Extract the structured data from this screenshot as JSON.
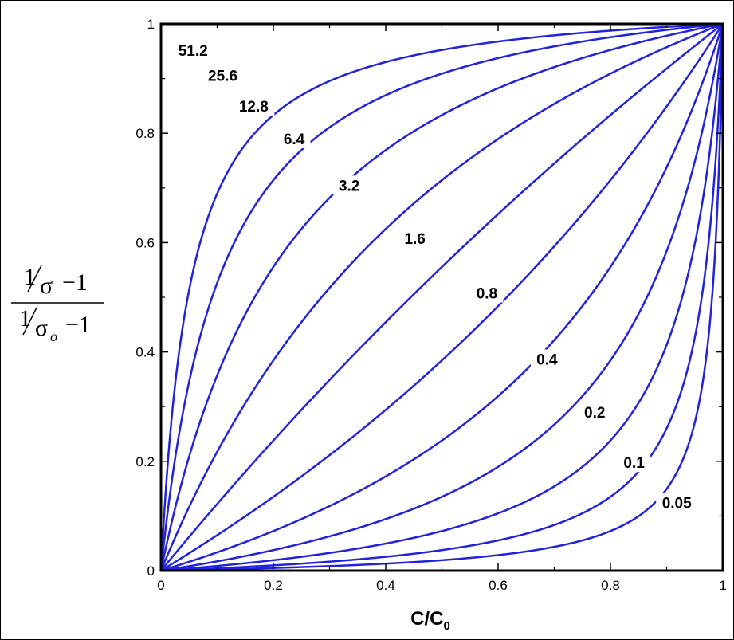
{
  "chart_data": {
    "type": "line",
    "xlabel": "C/C",
    "xlabel_sub": "0",
    "ylabel": {
      "numerator_one": "1",
      "numerator_sym": "σ",
      "numerator_minus_one": "−1",
      "denominator_one": "1",
      "denominator_sym": "σ",
      "denominator_sub": "o",
      "denominator_minus_one": "−1"
    },
    "xlim": [
      0,
      1
    ],
    "ylim": [
      0,
      1
    ],
    "xticks": [
      "0",
      "0.2",
      "0.4",
      "0.6",
      "0.8",
      "1"
    ],
    "yticks": [
      "0",
      "0.2",
      "0.4",
      "0.6",
      "0.8",
      "1"
    ],
    "xtick_values": [
      0,
      0.2,
      0.4,
      0.6,
      0.8,
      1
    ],
    "ytick_values": [
      0,
      0.2,
      0.4,
      0.6,
      0.8,
      1
    ],
    "line_color": "#2222dd",
    "grid": false,
    "series": [
      {
        "name": "51.2",
        "param": 51.2,
        "label_at": [
          0.057,
          0.952
        ]
      },
      {
        "name": "25.6",
        "param": 25.6,
        "label_at": [
          0.11,
          0.906
        ]
      },
      {
        "name": "12.8",
        "param": 12.8,
        "label_at": [
          0.165,
          0.85
        ]
      },
      {
        "name": "6.4",
        "param": 6.4,
        "label_at": [
          0.237,
          0.79
        ]
      },
      {
        "name": "3.2",
        "param": 3.2,
        "label_at": [
          0.335,
          0.705
        ]
      },
      {
        "name": "1.6",
        "param": 1.6,
        "label_at": [
          0.452,
          0.608
        ]
      },
      {
        "name": "0.8",
        "param": 0.8,
        "label_at": [
          0.58,
          0.508
        ]
      },
      {
        "name": "0.4",
        "param": 0.4,
        "label_at": [
          0.687,
          0.387
        ]
      },
      {
        "name": "0.2",
        "param": 0.2,
        "label_at": [
          0.772,
          0.29
        ]
      },
      {
        "name": "0.1",
        "param": 0.1,
        "label_at": [
          0.842,
          0.198
        ]
      },
      {
        "name": "0.05",
        "param": 0.05,
        "label_at": [
          0.918,
          0.125
        ]
      }
    ]
  }
}
